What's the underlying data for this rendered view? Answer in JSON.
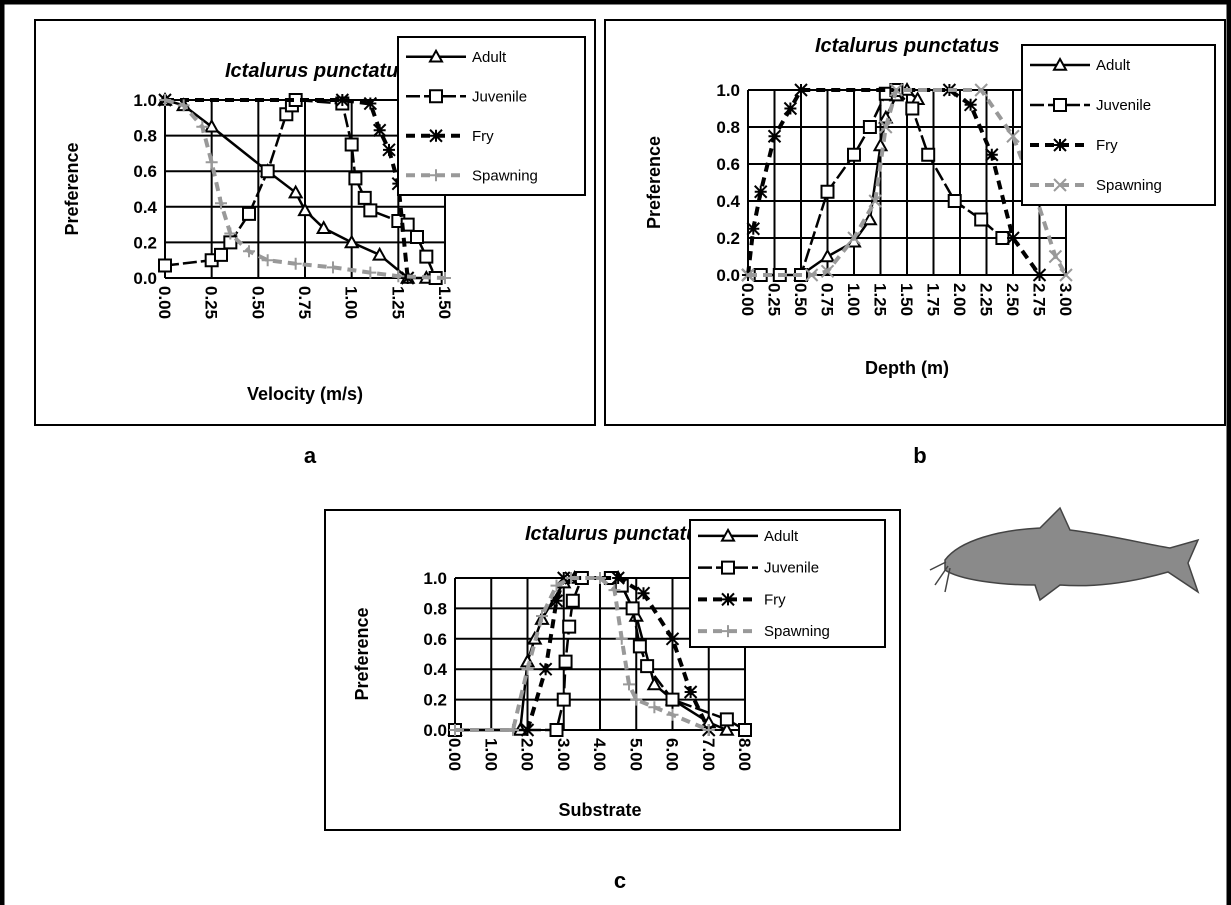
{
  "chart_data": [
    {
      "type": "line",
      "title": "Ictalurus punctatus",
      "x_label": "Velocity (m/s)",
      "y_label": "Preference",
      "panel_label": "a",
      "grid": true,
      "xlim": [
        0,
        1.5
      ],
      "ylim": [
        0,
        1
      ],
      "xticks": [
        {
          "value": 0,
          "label": "0.00"
        },
        {
          "value": 0.25,
          "label": "0.25"
        },
        {
          "value": 0.5,
          "label": "0.50"
        },
        {
          "value": 0.75,
          "label": "0.75"
        },
        {
          "value": 1,
          "label": "1.00"
        },
        {
          "value": 1.25,
          "label": "1.25"
        },
        {
          "value": 1.5,
          "label": "1.50"
        }
      ],
      "yticks": [
        {
          "value": 0,
          "label": "0.0"
        },
        {
          "value": 0.2,
          "label": "0.2"
        },
        {
          "value": 0.4,
          "label": "0.4"
        },
        {
          "value": 0.6,
          "label": "0.6"
        },
        {
          "value": 0.8,
          "label": "0.8"
        },
        {
          "value": 1,
          "label": "1.0"
        }
      ],
      "series": [
        {
          "name": "Adult",
          "color": "#000000",
          "marker": "triangle",
          "dash": "solid",
          "x": [
            0,
            0.1,
            0.25,
            0.55,
            0.7,
            0.75,
            0.85,
            1.0,
            1.15,
            1.3,
            1.4
          ],
          "values": [
            1,
            0.97,
            0.85,
            0.6,
            0.48,
            0.38,
            0.28,
            0.2,
            0.13,
            0,
            0
          ]
        },
        {
          "name": "Juvenile",
          "color": "#000000",
          "marker": "square",
          "dash": "long",
          "x": [
            0,
            0.25,
            0.3,
            0.35,
            0.45,
            0.55,
            0.65,
            0.68,
            0.7,
            0.95,
            1.0,
            1.02,
            1.07,
            1.1,
            1.25,
            1.3,
            1.35,
            1.4,
            1.45
          ],
          "values": [
            0.07,
            0.1,
            0.13,
            0.2,
            0.36,
            0.6,
            0.92,
            0.97,
            1,
            0.98,
            0.75,
            0.56,
            0.45,
            0.38,
            0.32,
            0.3,
            0.23,
            0.12,
            0
          ]
        },
        {
          "name": "Fry",
          "color": "#000000",
          "marker": "star",
          "dash": "dash",
          "x": [
            0,
            0.95,
            1.1,
            1.15,
            1.2,
            1.25,
            1.3
          ],
          "values": [
            1,
            1,
            0.98,
            0.83,
            0.72,
            0.53,
            0
          ]
        },
        {
          "name": "Spawning",
          "color": "#999999",
          "marker": "plus",
          "dash": "dash",
          "x": [
            0,
            0.1,
            0.2,
            0.25,
            0.3,
            0.35,
            0.45,
            0.55,
            0.7,
            0.9,
            1.1,
            1.25,
            1.5
          ],
          "values": [
            1,
            0.97,
            0.85,
            0.65,
            0.42,
            0.25,
            0.15,
            0.1,
            0.08,
            0.06,
            0.03,
            0.01,
            0
          ]
        }
      ]
    },
    {
      "type": "line",
      "title": "Ictalurus punctatus",
      "x_label": "Depth (m)",
      "y_label": "Preference",
      "panel_label": "b",
      "grid": true,
      "xlim": [
        0,
        3
      ],
      "ylim": [
        0,
        1
      ],
      "xticks": [
        {
          "value": 0,
          "label": "0.00"
        },
        {
          "value": 0.25,
          "label": "0.25"
        },
        {
          "value": 0.5,
          "label": "0.50"
        },
        {
          "value": 0.75,
          "label": "0.75"
        },
        {
          "value": 1,
          "label": "1.00"
        },
        {
          "value": 1.25,
          "label": "1.25"
        },
        {
          "value": 1.5,
          "label": "1.50"
        },
        {
          "value": 1.75,
          "label": "1.75"
        },
        {
          "value": 2,
          "label": "2.00"
        },
        {
          "value": 2.25,
          "label": "2.25"
        },
        {
          "value": 2.5,
          "label": "2.50"
        },
        {
          "value": 2.75,
          "label": "2.75"
        },
        {
          "value": 3,
          "label": "3.00"
        }
      ],
      "yticks": [
        {
          "value": 0,
          "label": "0.0"
        },
        {
          "value": 0.2,
          "label": "0.2"
        },
        {
          "value": 0.4,
          "label": "0.4"
        },
        {
          "value": 0.6,
          "label": "0.6"
        },
        {
          "value": 0.8,
          "label": "0.8"
        },
        {
          "value": 1,
          "label": "1.0"
        }
      ],
      "series": [
        {
          "name": "Adult",
          "color": "#000000",
          "marker": "triangle",
          "dash": "solid",
          "x": [
            0.5,
            0.75,
            1.0,
            1.15,
            1.25,
            1.3,
            1.4,
            1.5,
            1.6
          ],
          "values": [
            0,
            0.1,
            0.18,
            0.3,
            0.7,
            0.85,
            0.97,
            1,
            0.95
          ]
        },
        {
          "name": "Juvenile",
          "color": "#000000",
          "marker": "square",
          "dash": "long",
          "x": [
            0.12,
            0.3,
            0.5,
            0.75,
            1.0,
            1.15,
            1.3,
            1.4,
            1.55,
            1.7,
            1.95,
            2.2,
            2.4
          ],
          "values": [
            0,
            0,
            0,
            0.45,
            0.65,
            0.8,
            0.98,
            1,
            0.9,
            0.65,
            0.4,
            0.3,
            0.2
          ]
        },
        {
          "name": "Fry",
          "color": "#000000",
          "marker": "star",
          "dash": "dash",
          "x": [
            0,
            0.05,
            0.12,
            0.25,
            0.4,
            0.5,
            1.9,
            2.1,
            2.3,
            2.5,
            2.75
          ],
          "values": [
            0,
            0.25,
            0.45,
            0.75,
            0.9,
            1,
            1,
            0.92,
            0.65,
            0.2,
            0
          ]
        },
        {
          "name": "Spawning",
          "color": "#999999",
          "marker": "x",
          "dash": "dash",
          "x": [
            0,
            0.6,
            0.75,
            1.0,
            1.2,
            1.3,
            1.4,
            2.2,
            2.5,
            2.7,
            2.9,
            3.0
          ],
          "values": [
            0,
            0,
            0.02,
            0.2,
            0.4,
            0.8,
            1,
            1,
            0.75,
            0.45,
            0.1,
            0
          ]
        }
      ]
    },
    {
      "type": "line",
      "title": "Ictalurus punctatus",
      "x_label": "Substrate",
      "y_label": "Preference",
      "panel_label": "c",
      "grid": true,
      "xlim": [
        0,
        8
      ],
      "ylim": [
        0,
        1
      ],
      "xticks": [
        {
          "value": 0,
          "label": "0.00"
        },
        {
          "value": 1,
          "label": "1.00"
        },
        {
          "value": 2,
          "label": "2.00"
        },
        {
          "value": 3,
          "label": "3.00"
        },
        {
          "value": 4,
          "label": "4.00"
        },
        {
          "value": 5,
          "label": "5.00"
        },
        {
          "value": 6,
          "label": "6.00"
        },
        {
          "value": 7,
          "label": "7.00"
        },
        {
          "value": 8,
          "label": "8.00"
        }
      ],
      "yticks": [
        {
          "value": 0,
          "label": "0.0"
        },
        {
          "value": 0.2,
          "label": "0.2"
        },
        {
          "value": 0.4,
          "label": "0.4"
        },
        {
          "value": 0.6,
          "label": "0.6"
        },
        {
          "value": 0.8,
          "label": "0.8"
        },
        {
          "value": 1,
          "label": "1.0"
        }
      ],
      "series": [
        {
          "name": "Adult",
          "color": "#000000",
          "marker": "triangle",
          "dash": "solid",
          "x": [
            0,
            1.8,
            2.0,
            2.2,
            2.4,
            3.0,
            3.3,
            4.5,
            5.0,
            5.5,
            6.0,
            7.0,
            7.5
          ],
          "values": [
            0,
            0,
            0.45,
            0.6,
            0.73,
            0.97,
            1,
            1,
            0.75,
            0.3,
            0.2,
            0.05,
            0
          ]
        },
        {
          "name": "Juvenile",
          "color": "#000000",
          "marker": "square",
          "dash": "long",
          "x": [
            0,
            2.8,
            3.0,
            3.05,
            3.15,
            3.25,
            3.5,
            4.3,
            4.6,
            4.9,
            5.1,
            5.3,
            6,
            7.5,
            8
          ],
          "values": [
            0,
            0,
            0.2,
            0.45,
            0.68,
            0.85,
            1,
            1,
            0.95,
            0.8,
            0.55,
            0.42,
            0.2,
            0.07,
            0
          ]
        },
        {
          "name": "Fry",
          "color": "#000000",
          "marker": "star",
          "dash": "dash",
          "x": [
            2,
            2.5,
            2.8,
            3.0,
            3.2,
            4.5,
            5.2,
            6,
            6.5,
            7
          ],
          "values": [
            0,
            0.4,
            0.85,
            1,
            1,
            1,
            0.9,
            0.6,
            0.25,
            0
          ]
        },
        {
          "name": "Spawning",
          "color": "#999999",
          "marker": "plus",
          "dash": "dash",
          "x": [
            0,
            1.6,
            2.0,
            2.4,
            2.8,
            3.2,
            4.0,
            4.4,
            4.6,
            4.8,
            5.0,
            5.5,
            6.0,
            7.0
          ],
          "values": [
            0,
            0,
            0.4,
            0.75,
            0.95,
            1,
            1,
            0.92,
            0.6,
            0.3,
            0.2,
            0.15,
            0.1,
            0
          ]
        }
      ]
    }
  ]
}
